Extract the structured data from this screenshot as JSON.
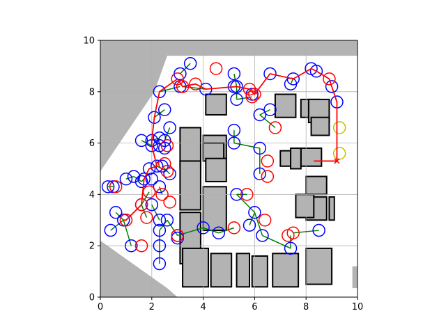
{
  "chart_data": {
    "type": "scatter",
    "title": "",
    "xlabel": "",
    "ylabel": "",
    "xlim": [
      0,
      10
    ],
    "ylim": [
      0,
      10
    ],
    "x_ticks": [
      "0",
      "2",
      "4",
      "6",
      "8",
      "10"
    ],
    "y_ticks": [
      "0",
      "2",
      "4",
      "6",
      "8",
      "10"
    ],
    "grid": true,
    "map": {
      "description_free_space": "#ffffff",
      "unknown_color": "#b3b3b3",
      "wall_color": "#000000",
      "unknown_regions": [
        [
          [
            0,
            0
          ],
          [
            0,
            2.2
          ],
          [
            2.6,
            0.35
          ],
          [
            3.0,
            0
          ],
          [
            0,
            0
          ]
        ],
        [
          [
            0,
            4.9
          ],
          [
            0,
            10
          ],
          [
            2.7,
            10
          ],
          [
            2.7,
            9.4
          ],
          [
            2.6,
            9.4
          ],
          [
            2.1,
            8.0
          ],
          [
            0,
            4.9
          ]
        ],
        [
          [
            2.6,
            9.4
          ],
          [
            10,
            9.4
          ],
          [
            10,
            10
          ],
          [
            2.7,
            10
          ],
          [
            2.6,
            9.4
          ]
        ],
        [
          [
            9.8,
            1.2
          ],
          [
            10,
            1.2
          ],
          [
            10,
            0.35
          ],
          [
            9.8,
            0.35
          ]
        ]
      ],
      "obstacles": [
        [
          3.1,
          5.0,
          0.8,
          1.6
        ],
        [
          3.1,
          3.4,
          0.8,
          1.9
        ],
        [
          3.1,
          1.3,
          0.8,
          2.0
        ],
        [
          4.0,
          2.6,
          0.9,
          1.7
        ],
        [
          4.0,
          5.4,
          0.9,
          0.9
        ],
        [
          4.0,
          5.3,
          0.8,
          0.7
        ],
        [
          4.1,
          7.1,
          0.8,
          0.8
        ],
        [
          4.1,
          4.5,
          0.8,
          0.9
        ],
        [
          3.2,
          0.4,
          1.0,
          1.5
        ],
        [
          4.3,
          0.4,
          0.8,
          1.3
        ],
        [
          5.3,
          0.4,
          0.5,
          1.3
        ],
        [
          5.9,
          0.4,
          0.6,
          1.2
        ],
        [
          6.7,
          0.4,
          1.0,
          1.3
        ],
        [
          8.0,
          0.5,
          1.0,
          1.4
        ],
        [
          6.8,
          7.0,
          0.8,
          0.9
        ],
        [
          7.8,
          7.0,
          0.7,
          0.7
        ],
        [
          8.1,
          6.8,
          0.8,
          0.9
        ],
        [
          7.0,
          5.1,
          0.8,
          0.6
        ],
        [
          7.8,
          5.1,
          0.8,
          0.7
        ],
        [
          8.0,
          3.0,
          0.8,
          0.9
        ],
        [
          7.6,
          3.1,
          0.7,
          0.9
        ],
        [
          7.4,
          5.0,
          0.4,
          0.8
        ],
        [
          8.0,
          4.0,
          0.8,
          0.7
        ],
        [
          8.2,
          6.3,
          0.7,
          0.7
        ],
        [
          8.9,
          3.0,
          0.2,
          0.9
        ]
      ]
    },
    "series": [
      {
        "nodes_blue": [
          [
            0.3,
            4.3
          ],
          [
            0.5,
            4.3
          ],
          [
            0.6,
            3.3
          ],
          [
            0.4,
            2.6
          ],
          [
            0.9,
            3.0
          ],
          [
            1.2,
            2.0
          ],
          [
            1.0,
            4.6
          ],
          [
            1.3,
            4.7
          ],
          [
            1.6,
            4.5
          ],
          [
            1.6,
            3.6
          ],
          [
            1.7,
            4.6
          ],
          [
            2.0,
            4.6
          ],
          [
            1.9,
            5.0
          ],
          [
            2.2,
            5.1
          ],
          [
            2.0,
            5.9
          ],
          [
            1.6,
            6.1
          ],
          [
            2.0,
            6.1
          ],
          [
            2.3,
            6.2
          ],
          [
            2.3,
            5.9
          ],
          [
            2.5,
            5.8
          ],
          [
            2.7,
            4.8
          ],
          [
            2.4,
            5.1
          ],
          [
            2.5,
            6.1
          ],
          [
            2.7,
            6.6
          ],
          [
            2.1,
            7.0
          ],
          [
            2.5,
            7.3
          ],
          [
            2.3,
            8.0
          ],
          [
            2.3,
            4.3
          ],
          [
            2.0,
            3.6
          ],
          [
            2.3,
            3.0
          ],
          [
            2.3,
            2.6
          ],
          [
            2.6,
            3.0
          ],
          [
            2.3,
            2.0
          ],
          [
            2.3,
            1.3
          ],
          [
            3.0,
            2.3
          ],
          [
            3.1,
            8.2
          ],
          [
            3.1,
            8.7
          ],
          [
            3.5,
            9.1
          ],
          [
            4.1,
            8.1
          ],
          [
            5.2,
            8.7
          ],
          [
            5.3,
            8.2
          ],
          [
            5.2,
            8.2
          ],
          [
            5.3,
            7.7
          ],
          [
            5.9,
            7.9
          ],
          [
            5.2,
            6.5
          ],
          [
            5.2,
            6.0
          ],
          [
            6.2,
            5.8
          ],
          [
            6.2,
            7.1
          ],
          [
            6.6,
            7.3
          ],
          [
            6.6,
            8.7
          ],
          [
            7.5,
            8.5
          ],
          [
            7.4,
            8.3
          ],
          [
            8.2,
            8.9
          ],
          [
            8.4,
            8.8
          ],
          [
            9.0,
            8.2
          ],
          [
            9.2,
            7.6
          ],
          [
            6.2,
            4.8
          ],
          [
            5.3,
            4.0
          ],
          [
            6.0,
            3.3
          ],
          [
            5.8,
            2.8
          ],
          [
            6.3,
            2.4
          ],
          [
            7.4,
            1.9
          ],
          [
            4.0,
            2.7
          ],
          [
            4.6,
            2.5
          ],
          [
            8.5,
            2.6
          ],
          [
            3.0,
            2.4
          ]
        ],
        "nodes_red": [
          [
            0.6,
            4.3
          ],
          [
            1.0,
            3.0
          ],
          [
            1.6,
            2.0
          ],
          [
            1.6,
            3.6
          ],
          [
            1.8,
            3.1
          ],
          [
            1.9,
            4.1
          ],
          [
            2.4,
            4.0
          ],
          [
            2.7,
            3.7
          ],
          [
            2.6,
            4.9
          ],
          [
            2.5,
            5.2
          ],
          [
            2.6,
            5.9
          ],
          [
            3.0,
            8.5
          ],
          [
            3.2,
            8.2
          ],
          [
            3.7,
            8.3
          ],
          [
            4.5,
            8.9
          ],
          [
            5.8,
            8.1
          ],
          [
            6.0,
            7.9
          ],
          [
            5.9,
            7.8
          ],
          [
            6.8,
            6.6
          ],
          [
            6.5,
            5.3
          ],
          [
            6.5,
            4.7
          ],
          [
            5.7,
            4.0
          ],
          [
            6.4,
            3.0
          ],
          [
            5.2,
            2.7
          ],
          [
            7.3,
            2.4
          ],
          [
            7.5,
            2.5
          ],
          [
            8.9,
            8.5
          ],
          [
            3.0,
            2.4
          ]
        ],
        "nodes_yellow": [
          [
            9.3,
            6.6
          ],
          [
            9.3,
            5.6
          ]
        ],
        "tree_edges_green": [
          [
            [
              0.5,
              4.3
            ],
            [
              0.3,
              4.3
            ]
          ],
          [
            [
              0.9,
              3.0
            ],
            [
              0.6,
              3.3
            ]
          ],
          [
            [
              0.9,
              3.0
            ],
            [
              0.4,
              2.6
            ]
          ],
          [
            [
              0.9,
              3.0
            ],
            [
              1.2,
              2.0
            ]
          ],
          [
            [
              1.3,
              4.7
            ],
            [
              1.6,
              4.5
            ]
          ],
          [
            [
              1.6,
              4.5
            ],
            [
              1.7,
              4.6
            ]
          ],
          [
            [
              1.6,
              3.6
            ],
            [
              1.9,
              4.1
            ]
          ],
          [
            [
              2.0,
              3.6
            ],
            [
              2.3,
              3.0
            ]
          ],
          [
            [
              2.3,
              2.6
            ],
            [
              2.6,
              3.0
            ]
          ],
          [
            [
              2.3,
              2.6
            ],
            [
              2.3,
              2.0
            ]
          ],
          [
            [
              2.3,
              2.0
            ],
            [
              2.3,
              1.3
            ]
          ],
          [
            [
              2.6,
              3.0
            ],
            [
              3.0,
              2.4
            ]
          ],
          [
            [
              2.0,
              5.9
            ],
            [
              1.6,
              6.1
            ]
          ],
          [
            [
              2.0,
              6.1
            ],
            [
              2.3,
              6.2
            ]
          ],
          [
            [
              2.3,
              5.9
            ],
            [
              2.5,
              6.1
            ]
          ],
          [
            [
              2.4,
              5.1
            ],
            [
              2.7,
              4.8
            ]
          ],
          [
            [
              2.5,
              6.1
            ],
            [
              2.7,
              6.6
            ]
          ],
          [
            [
              2.1,
              7.0
            ],
            [
              2.5,
              7.3
            ]
          ],
          [
            [
              2.3,
              8.0
            ],
            [
              3.1,
              8.2
            ]
          ],
          [
            [
              3.1,
              8.7
            ],
            [
              3.5,
              9.1
            ]
          ],
          [
            [
              3.2,
              8.2
            ],
            [
              4.1,
              8.1
            ]
          ],
          [
            [
              5.3,
              8.2
            ],
            [
              5.2,
              8.7
            ]
          ],
          [
            [
              5.3,
              8.2
            ],
            [
              5.3,
              7.7
            ]
          ],
          [
            [
              5.2,
              6.5
            ],
            [
              5.2,
              6.0
            ]
          ],
          [
            [
              5.2,
              6.0
            ],
            [
              6.2,
              5.8
            ]
          ],
          [
            [
              6.2,
              5.8
            ],
            [
              6.2,
              4.8
            ]
          ],
          [
            [
              6.2,
              7.1
            ],
            [
              6.6,
              7.3
            ]
          ],
          [
            [
              6.2,
              7.1
            ],
            [
              6.8,
              6.6
            ]
          ],
          [
            [
              7.5,
              8.5
            ],
            [
              7.4,
              8.3
            ]
          ],
          [
            [
              5.3,
              4.0
            ],
            [
              6.0,
              3.3
            ]
          ],
          [
            [
              6.0,
              3.3
            ],
            [
              5.8,
              2.8
            ]
          ],
          [
            [
              6.0,
              3.3
            ],
            [
              6.3,
              2.4
            ]
          ],
          [
            [
              6.3,
              2.4
            ],
            [
              7.4,
              1.9
            ]
          ],
          [
            [
              7.4,
              1.9
            ],
            [
              7.4,
              2.4
            ]
          ],
          [
            [
              4.0,
              2.7
            ],
            [
              4.6,
              2.5
            ]
          ],
          [
            [
              4.6,
              2.5
            ],
            [
              5.2,
              2.7
            ]
          ],
          [
            [
              7.5,
              2.5
            ],
            [
              8.5,
              2.6
            ]
          ],
          [
            [
              3.0,
              2.4
            ],
            [
              4.0,
              2.7
            ]
          ],
          [
            [
              1.0,
              4.6
            ],
            [
              1.3,
              4.7
            ]
          ],
          [
            [
              1.6,
              3.6
            ],
            [
              1.8,
              3.1
            ]
          ],
          [
            [
              2.3,
              4.3
            ],
            [
              2.4,
              4.0
            ]
          ],
          [
            [
              5.7,
              4.0
            ],
            [
              5.3,
              4.0
            ]
          ],
          [
            [
              5.9,
              7.8
            ],
            [
              5.3,
              7.7
            ]
          ],
          [
            [
              2.2,
              5.1
            ],
            [
              2.6,
              4.9
            ]
          ]
        ],
        "path_red": [
          [
            9.2,
            5.3
          ],
          [
            9.2,
            7.6
          ],
          [
            9.0,
            8.2
          ],
          [
            8.9,
            8.5
          ],
          [
            8.4,
            8.8
          ],
          [
            8.2,
            8.9
          ],
          [
            7.5,
            8.5
          ],
          [
            6.6,
            8.7
          ],
          [
            6.0,
            7.9
          ],
          [
            5.8,
            8.1
          ],
          [
            5.3,
            8.2
          ],
          [
            4.1,
            8.1
          ],
          [
            3.7,
            8.3
          ],
          [
            3.2,
            8.2
          ],
          [
            3.0,
            8.5
          ],
          [
            2.3,
            8.0
          ],
          [
            2.1,
            7.0
          ],
          [
            2.0,
            6.1
          ],
          [
            2.0,
            5.9
          ],
          [
            2.2,
            5.1
          ],
          [
            1.9,
            5.0
          ],
          [
            1.7,
            4.6
          ],
          [
            1.6,
            3.6
          ],
          [
            1.0,
            3.0
          ],
          [
            0.9,
            3.0
          ]
        ],
        "goal_marker": [
          9.2,
          5.3
        ],
        "start_segment": [
          [
            8.3,
            5.3
          ],
          [
            9.2,
            5.3
          ]
        ]
      }
    ]
  }
}
